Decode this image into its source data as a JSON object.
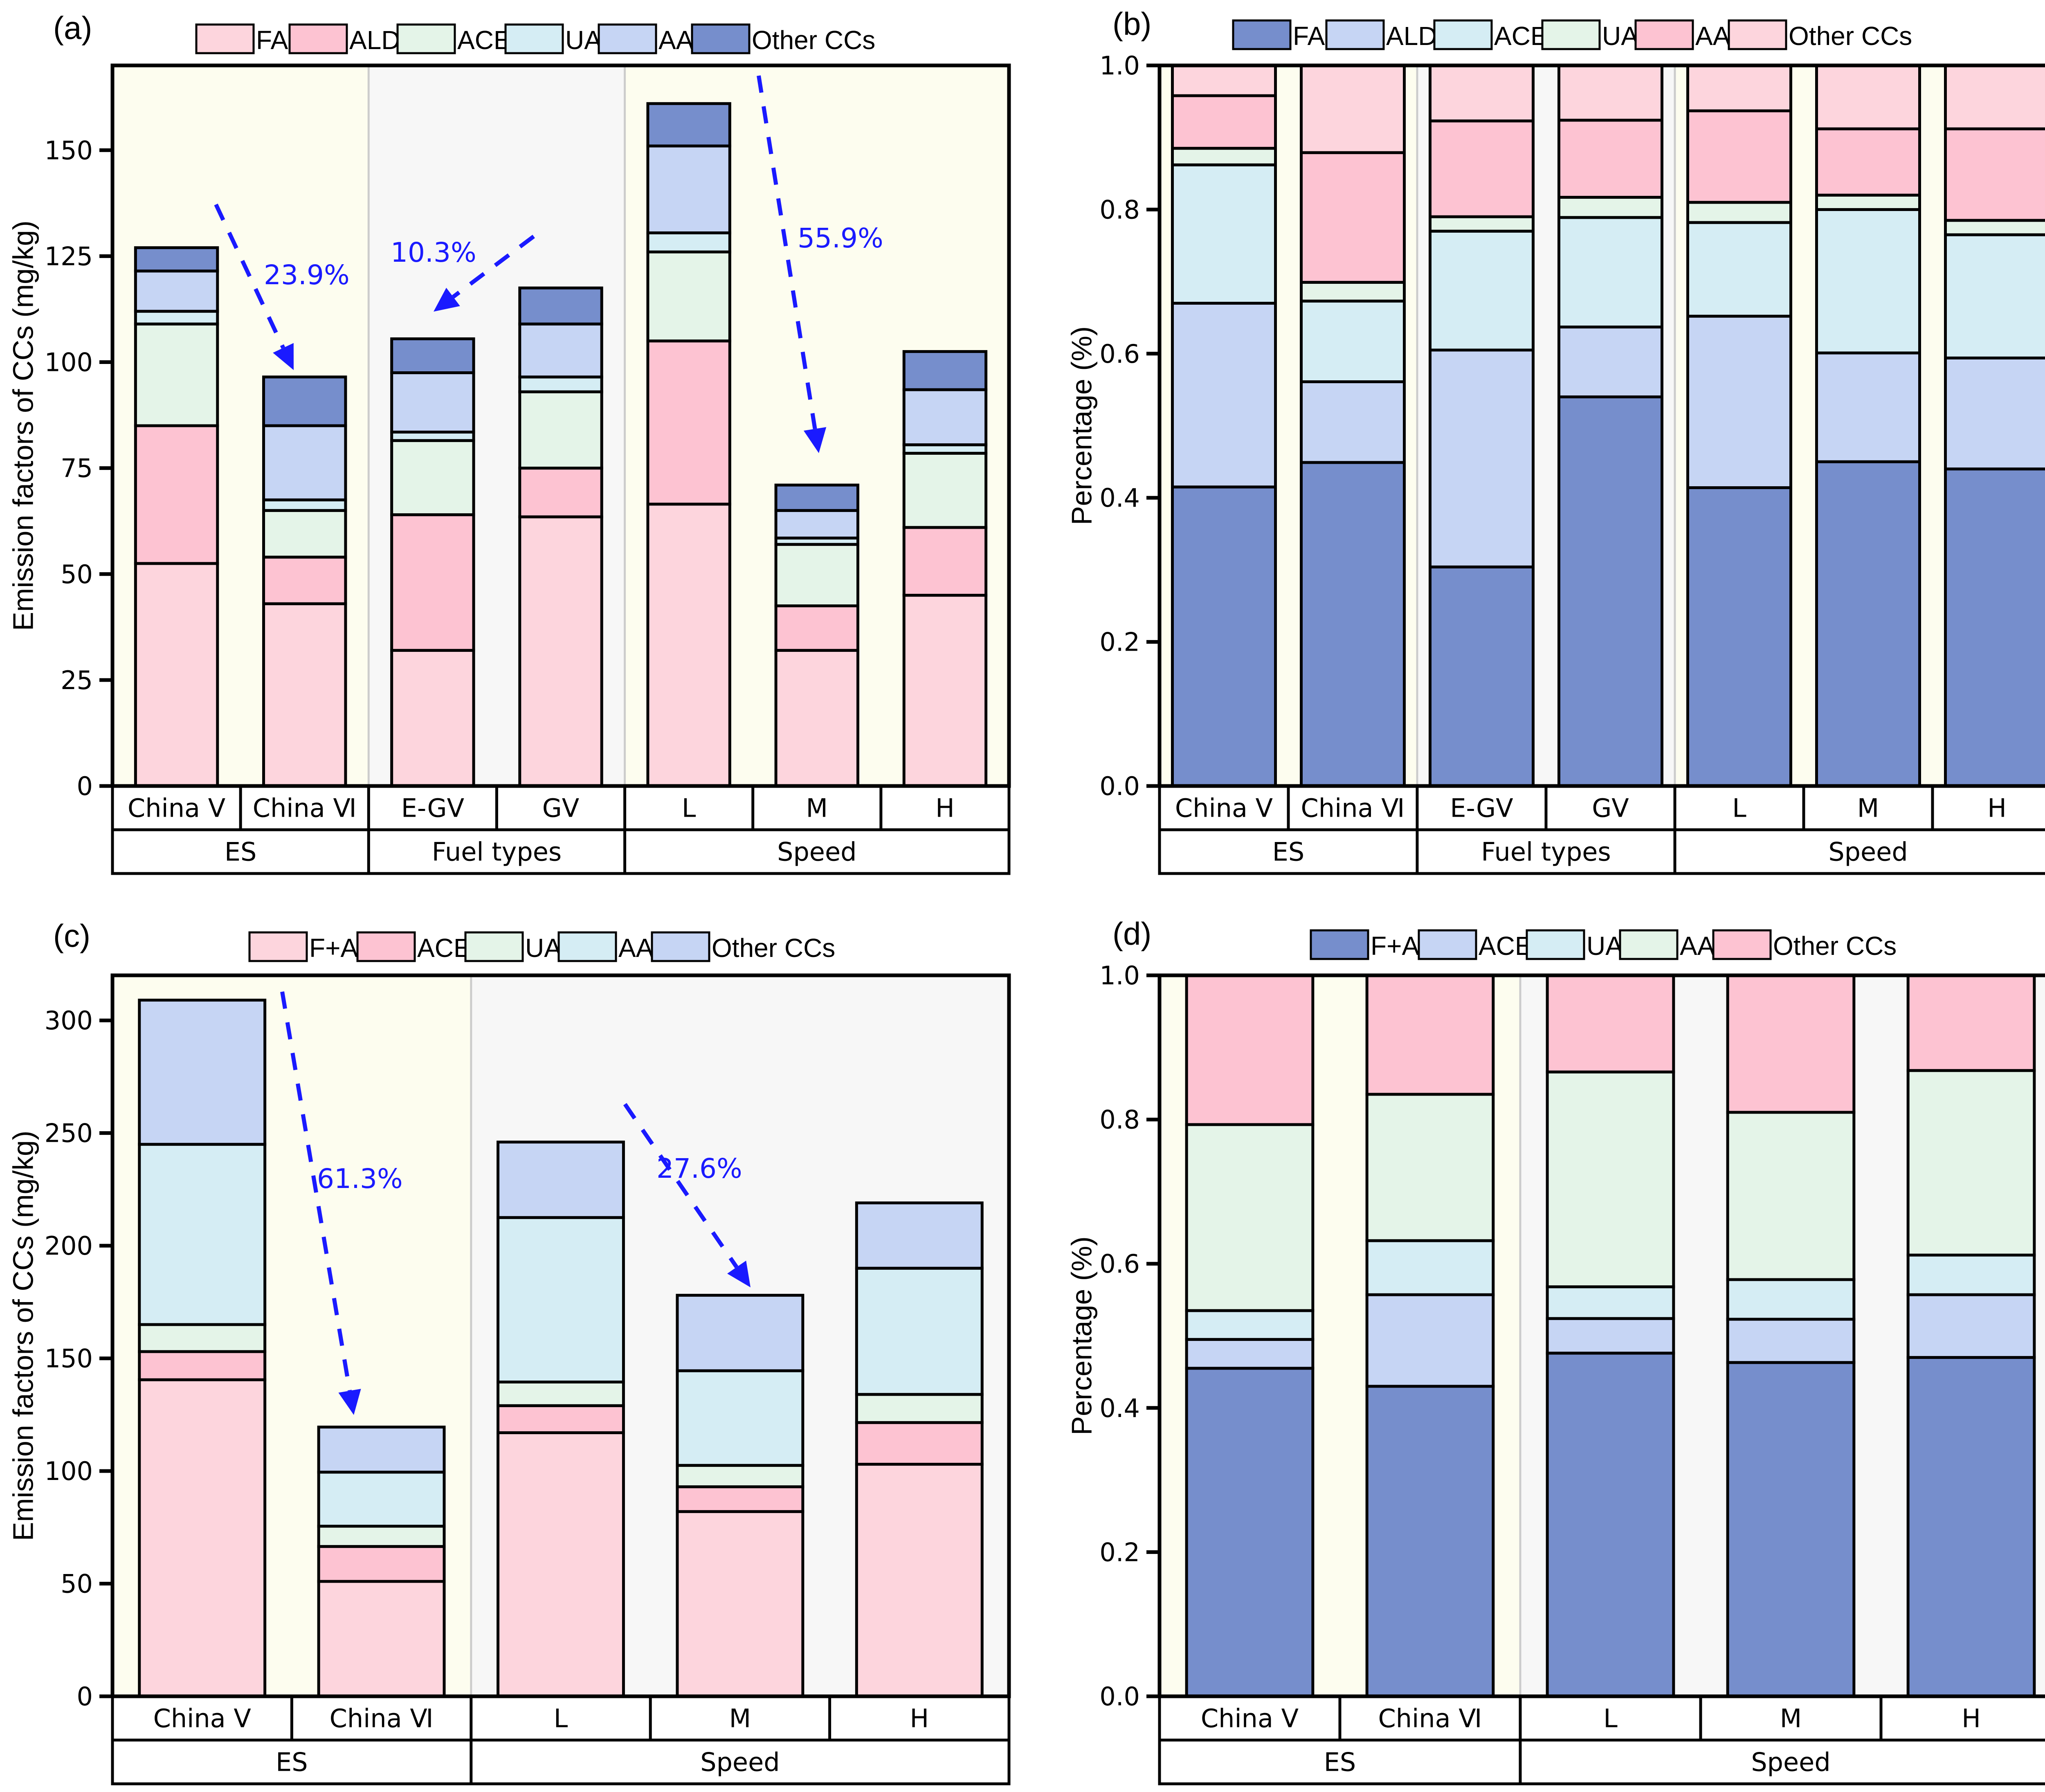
{
  "chart_data": [
    {
      "panel_label": "(a)",
      "type": "bar",
      "stacked": true,
      "ylabel": "Emission factors of CCs (mg/kg)",
      "ylim": [
        0,
        170
      ],
      "yticks": [
        0,
        25,
        50,
        75,
        100,
        125,
        150
      ],
      "categories": [
        "China Ⅴ",
        "China Ⅵ",
        "E-GV",
        "GV",
        "L",
        "M",
        "H"
      ],
      "groups": [
        {
          "label": "ES",
          "count": 2,
          "shade": "#fdfdef"
        },
        {
          "label": "Fuel types",
          "count": 2,
          "shade": "#f7f7f7"
        },
        {
          "label": "Speed",
          "count": 3,
          "shade": "#fdfdef"
        }
      ],
      "legend_position": "top",
      "series": [
        {
          "name": "FA",
          "color": "#fdd5dd",
          "values": [
            52.5,
            43,
            32,
            63.5,
            66.5,
            32,
            45
          ]
        },
        {
          "name": "ALD",
          "color": "#fdc3d2",
          "values": [
            32.5,
            11,
            32,
            11.5,
            38.5,
            10.5,
            16
          ]
        },
        {
          "name": "ACE",
          "color": "#e4f4e8",
          "values": [
            24,
            11,
            17.5,
            18,
            21,
            14.5,
            17.5
          ]
        },
        {
          "name": "UA",
          "color": "#d5edf4",
          "values": [
            3,
            2.5,
            2,
            3.5,
            4.5,
            1.5,
            2
          ]
        },
        {
          "name": "AA",
          "color": "#c6d5f4",
          "values": [
            9.5,
            17.5,
            14,
            12.5,
            20.5,
            6.5,
            13
          ]
        },
        {
          "name": "Other CCs",
          "color": "#768ecc",
          "values": [
            5.5,
            11.5,
            8,
            8.5,
            10,
            6,
            9
          ]
        }
      ],
      "annotations": [
        {
          "text": "23.9%",
          "from": "China Ⅴ",
          "to": "China Ⅵ"
        },
        {
          "text": "10.3%",
          "from": "GV",
          "to": "E-GV"
        },
        {
          "text": "55.9%",
          "from": "L",
          "to": "M"
        }
      ]
    },
    {
      "panel_label": "(b)",
      "type": "bar",
      "stacked": true,
      "ylabel": "Percentage (%)",
      "ylim": [
        0,
        1.0
      ],
      "yticks": [
        0.0,
        0.2,
        0.4,
        0.6,
        0.8,
        1.0
      ],
      "categories": [
        "China Ⅴ",
        "China Ⅵ",
        "E-GV",
        "GV",
        "L",
        "M",
        "H"
      ],
      "groups": [
        {
          "label": "ES",
          "count": 2,
          "shade": "#fdfdef"
        },
        {
          "label": "Fuel types",
          "count": 2,
          "shade": "#f7f7f7"
        },
        {
          "label": "Speed",
          "count": 3,
          "shade": "#fdfdef"
        }
      ],
      "legend_position": "top",
      "series": [
        {
          "name": "FA",
          "color": "#768ecc",
          "values": [
            0.415,
            0.449,
            0.304,
            0.54,
            0.414,
            0.45,
            0.44
          ]
        },
        {
          "name": "ALD",
          "color": "#c6d5f4",
          "values": [
            0.255,
            0.112,
            0.301,
            0.097,
            0.238,
            0.151,
            0.154
          ]
        },
        {
          "name": "ACE",
          "color": "#d5edf4",
          "values": [
            0.192,
            0.112,
            0.165,
            0.152,
            0.13,
            0.199,
            0.171
          ]
        },
        {
          "name": "UA",
          "color": "#e4f4e8",
          "values": [
            0.023,
            0.026,
            0.02,
            0.028,
            0.028,
            0.02,
            0.02
          ]
        },
        {
          "name": "AA",
          "color": "#fdc3d2",
          "values": [
            0.073,
            0.18,
            0.133,
            0.107,
            0.127,
            0.092,
            0.127
          ]
        },
        {
          "name": "Other CCs",
          "color": "#fdd5dd",
          "values": [
            0.042,
            0.121,
            0.077,
            0.076,
            0.063,
            0.088,
            0.088
          ]
        }
      ]
    },
    {
      "panel_label": "(c)",
      "type": "bar",
      "stacked": true,
      "ylabel": "Emission factors of CCs (mg/kg)",
      "ylim": [
        0,
        320
      ],
      "yticks": [
        0,
        50,
        100,
        150,
        200,
        250,
        300
      ],
      "categories": [
        "China Ⅴ",
        "China Ⅵ",
        "L",
        "M",
        "H"
      ],
      "groups": [
        {
          "label": "ES",
          "count": 2,
          "shade": "#fdfdef"
        },
        {
          "label": "Speed",
          "count": 3,
          "shade": "#f7f7f7"
        }
      ],
      "legend_position": "top",
      "series": [
        {
          "name": "F+A",
          "color": "#fdd5dd",
          "values": [
            140.5,
            51,
            117,
            82,
            103
          ]
        },
        {
          "name": "ACE",
          "color": "#fdc3d2",
          "values": [
            12.5,
            15.5,
            12,
            11,
            18.5
          ]
        },
        {
          "name": "UA",
          "color": "#e4f4e8",
          "values": [
            12,
            9,
            10.5,
            9.5,
            12.5
          ]
        },
        {
          "name": "AA",
          "color": "#d5edf4",
          "values": [
            80,
            24,
            73,
            42,
            56
          ]
        },
        {
          "name": "Other CCs",
          "color": "#c6d5f4",
          "values": [
            64,
            20,
            33.5,
            33.5,
            29
          ]
        }
      ],
      "annotations": [
        {
          "text": "61.3%",
          "from": "China Ⅴ",
          "to": "China Ⅵ"
        },
        {
          "text": "27.6%",
          "from": "L",
          "to": "M"
        }
      ]
    },
    {
      "panel_label": "(d)",
      "type": "bar",
      "stacked": true,
      "ylabel": "Percentage (%)",
      "ylim": [
        0,
        1.0
      ],
      "yticks": [
        0.0,
        0.2,
        0.4,
        0.6,
        0.8,
        1.0
      ],
      "categories": [
        "China Ⅴ",
        "China Ⅵ",
        "L",
        "M",
        "H"
      ],
      "groups": [
        {
          "label": "ES",
          "count": 2,
          "shade": "#fdfdef"
        },
        {
          "label": "Speed",
          "count": 3,
          "shade": "#f7f7f7"
        }
      ],
      "legend_position": "top",
      "series": [
        {
          "name": "F+A",
          "color": "#768ecc",
          "values": [
            0.455,
            0.43,
            0.476,
            0.463,
            0.47
          ]
        },
        {
          "name": "ACE",
          "color": "#c6d5f4",
          "values": [
            0.04,
            0.127,
            0.048,
            0.06,
            0.087
          ]
        },
        {
          "name": "UA",
          "color": "#d5edf4",
          "values": [
            0.04,
            0.075,
            0.044,
            0.055,
            0.055
          ]
        },
        {
          "name": "AA",
          "color": "#e4f4e8",
          "values": [
            0.258,
            0.203,
            0.298,
            0.232,
            0.256
          ]
        },
        {
          "name": "Other CCs",
          "color": "#fdc3d2",
          "values": [
            0.207,
            0.165,
            0.134,
            0.19,
            0.132
          ]
        }
      ]
    }
  ]
}
